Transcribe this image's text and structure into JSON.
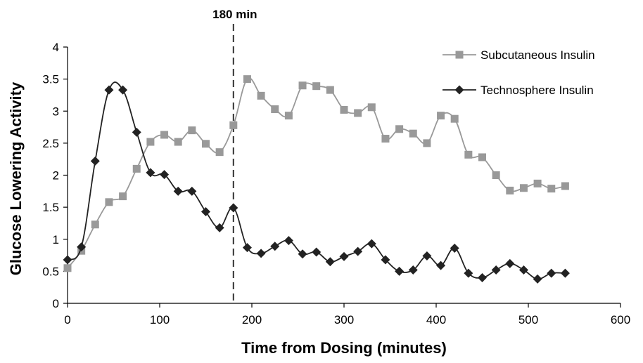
{
  "chart_data": {
    "type": "line",
    "title": "",
    "xlabel": "Time from Dosing (minutes)",
    "ylabel": "Glucose Lowering Activity",
    "xlim": [
      0,
      600
    ],
    "ylim": [
      0,
      4
    ],
    "xticks": [
      "0",
      "100",
      "200",
      "300",
      "400",
      "500",
      "600"
    ],
    "yticks": [
      "0",
      "0.5",
      "1",
      "1.5",
      "2",
      "2.5",
      "3",
      "3.5",
      "4"
    ],
    "grid": false,
    "legend_position": "top-right",
    "annotation": {
      "label": "180 min",
      "x": 180
    },
    "series": [
      {
        "name": "Subcutaneous Insulin",
        "color": "#999999",
        "marker": "square",
        "x": [
          0,
          15,
          30,
          45,
          60,
          75,
          90,
          105,
          120,
          135,
          150,
          165,
          180,
          195,
          210,
          225,
          240,
          255,
          270,
          285,
          300,
          315,
          330,
          345,
          360,
          375,
          390,
          405,
          420,
          435,
          450,
          465,
          480,
          495,
          510,
          525,
          540
        ],
        "y": [
          0.55,
          0.82,
          1.23,
          1.58,
          1.67,
          2.1,
          2.52,
          2.63,
          2.52,
          2.7,
          2.49,
          2.36,
          2.78,
          3.5,
          3.24,
          3.03,
          2.93,
          3.4,
          3.39,
          3.33,
          3.02,
          2.97,
          3.06,
          2.57,
          2.72,
          2.65,
          2.5,
          2.93,
          2.88,
          2.32,
          2.28,
          2.0,
          1.76,
          1.8,
          1.87,
          1.79,
          1.83
        ]
      },
      {
        "name": "Technosphere Insulin",
        "color": "#222222",
        "marker": "diamond",
        "x": [
          0,
          15,
          30,
          45,
          60,
          75,
          90,
          105,
          120,
          135,
          150,
          165,
          180,
          195,
          210,
          225,
          240,
          255,
          270,
          285,
          300,
          315,
          330,
          345,
          360,
          375,
          390,
          405,
          420,
          435,
          450,
          465,
          480,
          495,
          510,
          525,
          540
        ],
        "y": [
          0.68,
          0.88,
          2.22,
          3.33,
          3.33,
          2.67,
          2.04,
          2.01,
          1.75,
          1.75,
          1.43,
          1.18,
          1.49,
          0.87,
          0.78,
          0.89,
          0.98,
          0.77,
          0.8,
          0.65,
          0.73,
          0.81,
          0.93,
          0.68,
          0.5,
          0.52,
          0.74,
          0.59,
          0.86,
          0.47,
          0.4,
          0.52,
          0.62,
          0.52,
          0.38,
          0.47,
          0.47
        ]
      }
    ]
  }
}
